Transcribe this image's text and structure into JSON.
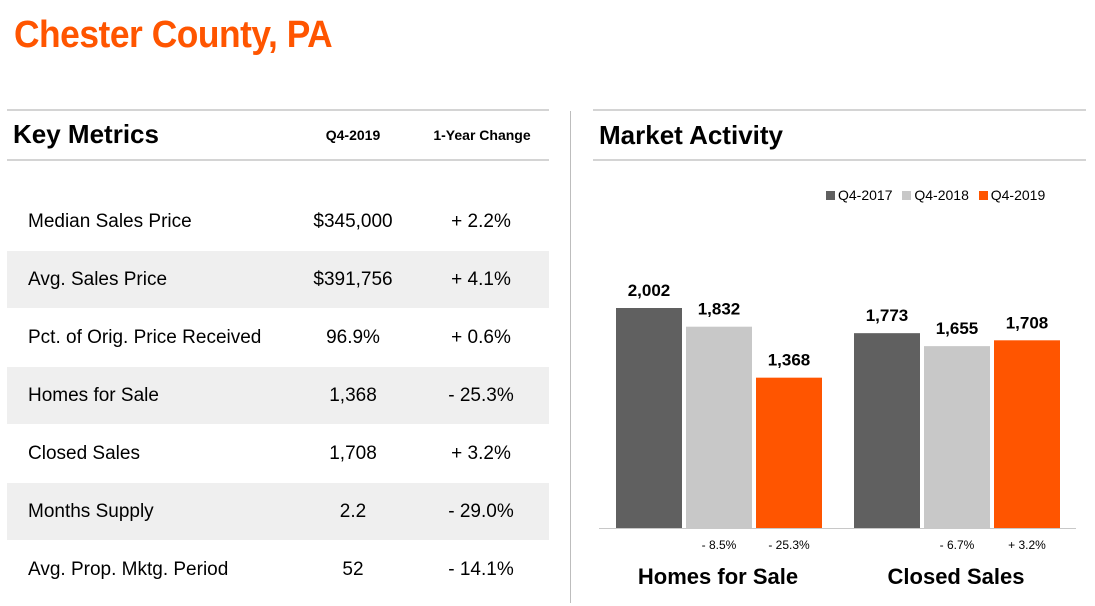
{
  "page": {
    "title": "Chester County, PA"
  },
  "metrics": {
    "title": "Key Metrics",
    "col_value": "Q4-2019",
    "col_change": "1-Year Change",
    "rows": [
      {
        "label": "Median Sales Price",
        "value": "$345,000",
        "change": "+ 2.2%"
      },
      {
        "label": "Avg. Sales Price",
        "value": "$391,756",
        "change": "+ 4.1%"
      },
      {
        "label": "Pct. of Orig. Price Received",
        "value": "96.9%",
        "change": "+ 0.6%"
      },
      {
        "label": "Homes for Sale",
        "value": "1,368",
        "change": "- 25.3%"
      },
      {
        "label": "Closed Sales",
        "value": "1,708",
        "change": "+ 3.2%"
      },
      {
        "label": "Months Supply",
        "value": "2.2",
        "change": "- 29.0%"
      },
      {
        "label": "Avg. Prop. Mktg. Period",
        "value": "52",
        "change": "- 14.1%"
      }
    ]
  },
  "activity": {
    "title": "Market Activity"
  },
  "chart_data": {
    "type": "bar",
    "categories": [
      "Homes for Sale",
      "Closed Sales"
    ],
    "series": [
      {
        "name": "Q4-2017",
        "color": "#606060",
        "values": [
          2002,
          1773
        ],
        "labels": [
          "2,002",
          "1,773"
        ],
        "changes": [
          "",
          ""
        ]
      },
      {
        "name": "Q4-2018",
        "color": "#c8c8c8",
        "values": [
          1832,
          1655
        ],
        "labels": [
          "1,832",
          "1,655"
        ],
        "changes": [
          "- 8.5%",
          "- 6.7%"
        ]
      },
      {
        "name": "Q4-2019",
        "color": "#ff5500",
        "values": [
          1368,
          1708
        ],
        "labels": [
          "1,368",
          "1,708"
        ],
        "changes": [
          "- 25.3%",
          "+ 3.2%"
        ]
      }
    ],
    "legend_position": "top-right",
    "grid": false
  }
}
